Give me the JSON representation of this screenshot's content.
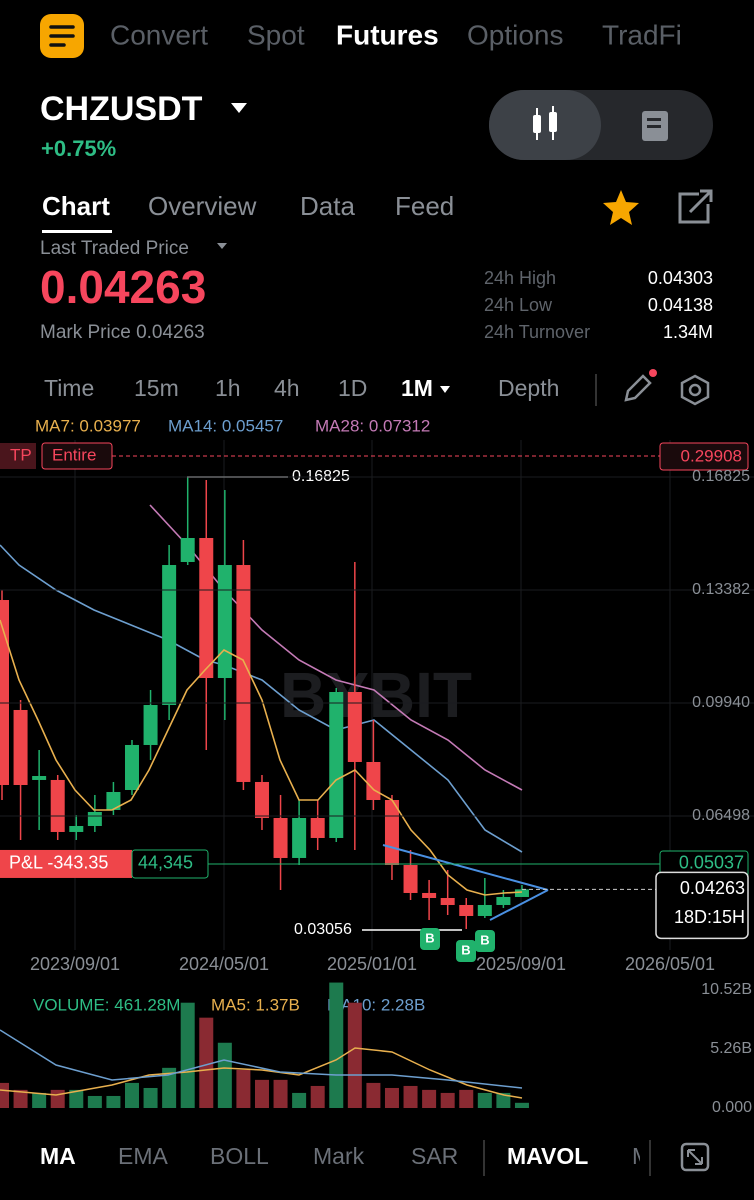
{
  "nav": {
    "tabs": [
      "Convert",
      "Spot",
      "Futures",
      "Options",
      "TradFi"
    ]
  },
  "header": {
    "symbol": "CHZUSDT",
    "change": "+0.75%"
  },
  "subtabs": [
    "Chart",
    "Overview",
    "Data",
    "Feed"
  ],
  "price": {
    "label": "Last Traded Price",
    "last": "0.04263",
    "mark": "Mark Price 0.04263"
  },
  "stats": [
    {
      "label": "24h High",
      "value": "0.04303"
    },
    {
      "label": "24h Low",
      "value": "0.04138"
    },
    {
      "label": "24h Turnover",
      "value": "1.34M"
    }
  ],
  "timeframes": [
    "Time",
    "15m",
    "1h",
    "4h",
    "1D",
    "1M",
    "Depth"
  ],
  "ma_legend": [
    "MA7: 0.03977",
    "MA14: 0.05457",
    "MA28: 0.07312"
  ],
  "tp": {
    "tag": "TP",
    "mode": "Entire",
    "price": "0.29908"
  },
  "chart": {
    "ylim": [
      0.02416,
      0.17951
    ],
    "yticks": [
      0.16825,
      0.13382,
      {
        "value": 0.0994,
        "label": "0.09940"
      },
      0.06498
    ],
    "xlabels": [
      "2023/09/01",
      "2024/05/01",
      "2025/01/01",
      "2025/09/01",
      "2026/05/01"
    ],
    "watermark": "BYBIT",
    "candles": [
      [
        0.13077,
        0.13382,
        0.06985,
        0.07442
      ],
      [
        0.09727,
        0.10031,
        0.05767,
        0.07442
      ],
      [
        0.07595,
        0.08508,
        0.06072,
        0.07716
      ],
      [
        0.07595,
        0.07747,
        0.05767,
        0.06011
      ],
      [
        0.06011,
        0.06528,
        0.05767,
        0.06193
      ],
      [
        0.06193,
        0.07138,
        0.06011,
        0.0662
      ],
      [
        0.06681,
        0.07534,
        0.06528,
        0.07229
      ],
      [
        0.0729,
        0.08813,
        0.07138,
        0.08661
      ],
      [
        0.08661,
        0.10336,
        0.08204,
        0.09879
      ],
      [
        0.09879,
        0.14753,
        0.09422,
        0.14143
      ],
      [
        0.14235,
        0.16825,
        0.14143,
        0.14966
      ],
      [
        0.14966,
        0.16733,
        0.08508,
        0.10701
      ],
      [
        0.10701,
        0.16428,
        0.09422,
        0.14143
      ],
      [
        0.14143,
        0.14905,
        0.0729,
        0.07534
      ],
      [
        0.07534,
        0.07747,
        0.06072,
        0.06437
      ],
      [
        0.06437,
        0.07138,
        0.04244,
        0.05219
      ],
      [
        0.05219,
        0.06985,
        0.05005,
        0.06437
      ],
      [
        0.06437,
        0.06985,
        0.05462,
        0.05828
      ],
      [
        0.05828,
        0.10397,
        0.05706,
        0.10275
      ],
      [
        0.10275,
        0.14235,
        0.05462,
        0.08143
      ],
      [
        0.08143,
        0.09422,
        0.06681,
        0.06985
      ],
      [
        0.06985,
        0.07138,
        0.04549,
        0.05005
      ],
      [
        0.05005,
        0.05462,
        0.03939,
        0.04153
      ],
      [
        0.04153,
        0.04549,
        0.0333,
        0.04
      ],
      [
        0.04,
        0.04853,
        0.03482,
        0.03787
      ],
      [
        0.03787,
        0.04,
        0.03056,
        0.03452
      ],
      [
        0.03452,
        0.04609,
        0.03391,
        0.03787
      ],
      [
        0.03787,
        0.04244,
        0.03696,
        0.04031
      ],
      [
        0.04031,
        0.04396,
        0.04031,
        0.04263
      ]
    ],
    "high_label": "0.16825",
    "low_label": "0.03056",
    "markers": [
      "B",
      "B",
      "B"
    ],
    "pnl": "P&L -343.35",
    "qty": "44,345",
    "entry": 0.05037,
    "current": 0.04263,
    "countdown": "18D:15H"
  },
  "volume": {
    "legend": [
      "VOLUME: 461.28M",
      "MA5: 1.37B",
      "MA10: 2.28B"
    ],
    "ylim": [
      0,
      11.2
    ],
    "yticks": [
      {
        "value": 10.52,
        "label": "10.52B"
      },
      {
        "value": 5.26,
        "label": "5.26B"
      },
      {
        "value": 0,
        "label": "0.000"
      }
    ],
    "values": [
      2.23,
      1.61,
      1.34,
      1.61,
      1.61,
      1.07,
      1.07,
      2.23,
      1.78,
      3.57,
      9.36,
      8.03,
      5.8,
      3.39,
      2.5,
      2.5,
      1.34,
      1.96,
      11.15,
      9.36,
      2.23,
      1.78,
      1.96,
      1.61,
      1.34,
      1.61,
      1.34,
      1.34,
      0.46128
    ]
  },
  "indicators": [
    "MA",
    "EMA",
    "BOLL",
    "Mark",
    "SAR",
    "MAVOL",
    "M"
  ]
}
